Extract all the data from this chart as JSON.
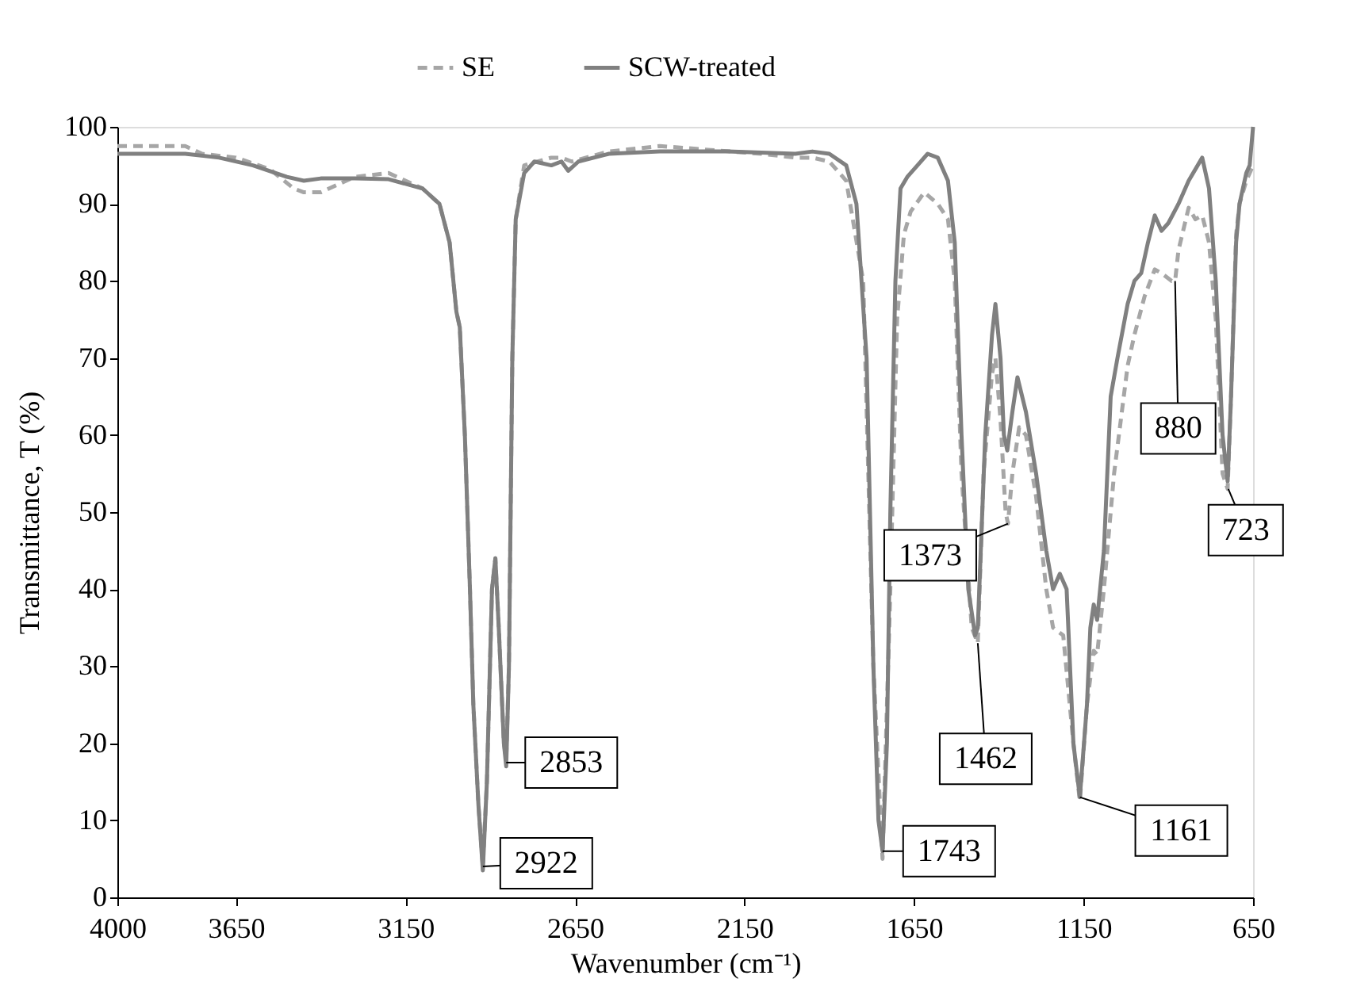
{
  "chart_data": {
    "type": "line",
    "xlabel": "Wavenumber (cm⁻¹)",
    "ylabel": "Transmittance, T (%)",
    "xlim": [
      4000,
      650
    ],
    "xticks": [
      4000,
      3650,
      3150,
      2650,
      2150,
      1650,
      1150,
      650
    ],
    "ylim": [
      0,
      100
    ],
    "yticks": [
      0,
      10,
      20,
      30,
      40,
      50,
      60,
      70,
      80,
      90,
      100
    ],
    "grid": false,
    "legend": "top",
    "marker": "none",
    "series": [
      {
        "name": "SE",
        "color": "#a6a6a6",
        "line_style": "dashed",
        "x": [
          4000,
          3900,
          3800,
          3750,
          3650,
          3550,
          3480,
          3450,
          3400,
          3350,
          3300,
          3200,
          3100,
          3050,
          3020,
          3000,
          2990,
          2975,
          2960,
          2950,
          2935,
          2922,
          2910,
          2895,
          2885,
          2875,
          2860,
          2853,
          2845,
          2835,
          2825,
          2800,
          2720,
          2690,
          2660,
          2550,
          2400,
          2250,
          2100,
          2000,
          1950,
          1900,
          1850,
          1800,
          1770,
          1743,
          1720,
          1700,
          1680,
          1660,
          1620,
          1580,
          1550,
          1530,
          1510,
          1480,
          1462,
          1445,
          1420,
          1410,
          1395,
          1380,
          1373,
          1360,
          1340,
          1320,
          1290,
          1260,
          1240,
          1210,
          1180,
          1161,
          1140,
          1120,
          1110,
          1090,
          1060,
          1020,
          1000,
          970,
          940,
          920,
          890,
          880,
          870,
          840,
          820,
          800,
          780,
          760,
          740,
          725,
          715,
          700,
          690,
          670,
          650
        ],
        "values": [
          97.5,
          97.5,
          97.5,
          96.5,
          96,
          94.5,
          92,
          91.5,
          91.5,
          92.5,
          93.5,
          94,
          92,
          90,
          85,
          76,
          74,
          60,
          40,
          25,
          12,
          4,
          15,
          40,
          44,
          35,
          20,
          18,
          30,
          70,
          88,
          95,
          96,
          96,
          95.5,
          96.8,
          97.5,
          97,
          96.5,
          96,
          96,
          95.5,
          93,
          80,
          30,
          5,
          40,
          75,
          86,
          89,
          91.5,
          90,
          88,
          80,
          55,
          35,
          33,
          55,
          68,
          70,
          62,
          50,
          48.5,
          55,
          61,
          60,
          52,
          40,
          35,
          34,
          20,
          12.5,
          25,
          32,
          31.5,
          40,
          55,
          69,
          73,
          78,
          81.5,
          81,
          80,
          80,
          84,
          89.5,
          88,
          88.5,
          85,
          75,
          55,
          53,
          65,
          86,
          90,
          93,
          95
        ]
      },
      {
        "name": "SCW-treated",
        "color": "#808080",
        "line_style": "solid",
        "x": [
          4000,
          3900,
          3800,
          3700,
          3600,
          3500,
          3450,
          3400,
          3300,
          3200,
          3100,
          3050,
          3020,
          3000,
          2990,
          2975,
          2960,
          2950,
          2935,
          2922,
          2910,
          2895,
          2885,
          2875,
          2860,
          2853,
          2845,
          2835,
          2825,
          2800,
          2770,
          2720,
          2690,
          2670,
          2640,
          2550,
          2400,
          2200,
          2000,
          1950,
          1900,
          1850,
          1820,
          1790,
          1770,
          1755,
          1743,
          1730,
          1720,
          1705,
          1690,
          1670,
          1640,
          1610,
          1580,
          1550,
          1530,
          1510,
          1490,
          1470,
          1462,
          1440,
          1420,
          1410,
          1395,
          1385,
          1375,
          1360,
          1345,
          1320,
          1290,
          1260,
          1240,
          1220,
          1200,
          1180,
          1161,
          1140,
          1130,
          1120,
          1110,
          1090,
          1070,
          1050,
          1020,
          1000,
          980,
          960,
          940,
          920,
          900,
          870,
          840,
          800,
          780,
          760,
          740,
          725,
          715,
          700,
          690,
          670,
          660,
          650
        ],
        "values": [
          96.5,
          96.5,
          96.5,
          96,
          95,
          93.5,
          93,
          93.3,
          93.3,
          93.2,
          92,
          90,
          85,
          76,
          74,
          60,
          40,
          25,
          12,
          3.5,
          15,
          40,
          44,
          35,
          20,
          17,
          30,
          70,
          88,
          94,
          95.5,
          95,
          95.5,
          94.3,
          95.5,
          96.5,
          96.8,
          96.8,
          96.5,
          96.8,
          96.5,
          95,
          90,
          70,
          30,
          10,
          6,
          20,
          50,
          80,
          92,
          93.5,
          95,
          96.5,
          96,
          93,
          85,
          60,
          40,
          34,
          35,
          60,
          73,
          77,
          70,
          60,
          58,
          63,
          67.5,
          63,
          55,
          45,
          40,
          42,
          40,
          20,
          13,
          25,
          35,
          38,
          36,
          45,
          65,
          70,
          77,
          80,
          81,
          85,
          88.5,
          86.5,
          87.5,
          90,
          93,
          96,
          92,
          80,
          60,
          54,
          65,
          85,
          90,
          94,
          95,
          100
        ]
      }
    ],
    "annotations": [
      {
        "text": "2922",
        "x": 2922,
        "y": 4
      },
      {
        "text": "2853",
        "x": 2853,
        "y": 17.5
      },
      {
        "text": "1743",
        "x": 1743,
        "y": 6
      },
      {
        "text": "1462",
        "x": 1462,
        "y": 33
      },
      {
        "text": "1373",
        "x": 1373,
        "y": 48.5
      },
      {
        "text": "1161",
        "x": 1161,
        "y": 13
      },
      {
        "text": "880",
        "x": 880,
        "y": 80
      },
      {
        "text": "723",
        "x": 723,
        "y": 53
      }
    ]
  }
}
